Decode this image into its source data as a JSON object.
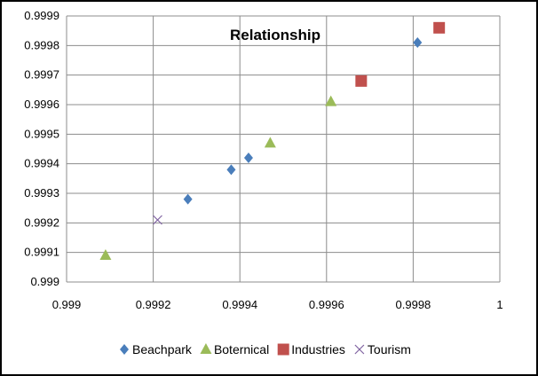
{
  "chart_data": {
    "type": "scatter",
    "title": "Relationship",
    "xlabel": "",
    "ylabel": "",
    "xlim": [
      0.999,
      1.0
    ],
    "ylim": [
      0.999,
      0.9999
    ],
    "x_ticks": [
      "0.999",
      "0.9992",
      "0.9994",
      "0.9996",
      "0.9998",
      "1"
    ],
    "y_ticks": [
      "0.999",
      "0.9991",
      "0.9992",
      "0.9993",
      "0.9994",
      "0.9995",
      "0.9996",
      "0.9997",
      "0.9998",
      "0.9999"
    ],
    "grid": true,
    "legend_position": "bottom",
    "series": [
      {
        "name": "Beachpark",
        "marker": "diamond",
        "color": "#4a7ebb",
        "points": [
          {
            "x": 0.99928,
            "y": 0.99928
          },
          {
            "x": 0.99938,
            "y": 0.99938
          },
          {
            "x": 0.99942,
            "y": 0.99942
          },
          {
            "x": 0.99981,
            "y": 0.99981
          }
        ]
      },
      {
        "name": "Boternical",
        "marker": "triangle",
        "color": "#9bbb59",
        "points": [
          {
            "x": 0.99909,
            "y": 0.99909
          },
          {
            "x": 0.99947,
            "y": 0.99947
          },
          {
            "x": 0.99961,
            "y": 0.99961
          }
        ]
      },
      {
        "name": "Industries",
        "marker": "square",
        "color": "#c0504d",
        "points": [
          {
            "x": 0.99968,
            "y": 0.99968
          },
          {
            "x": 0.99986,
            "y": 0.99986
          }
        ]
      },
      {
        "name": "Tourism",
        "marker": "x",
        "color": "#8064a2",
        "points": [
          {
            "x": 0.99921,
            "y": 0.99921
          }
        ]
      }
    ]
  }
}
